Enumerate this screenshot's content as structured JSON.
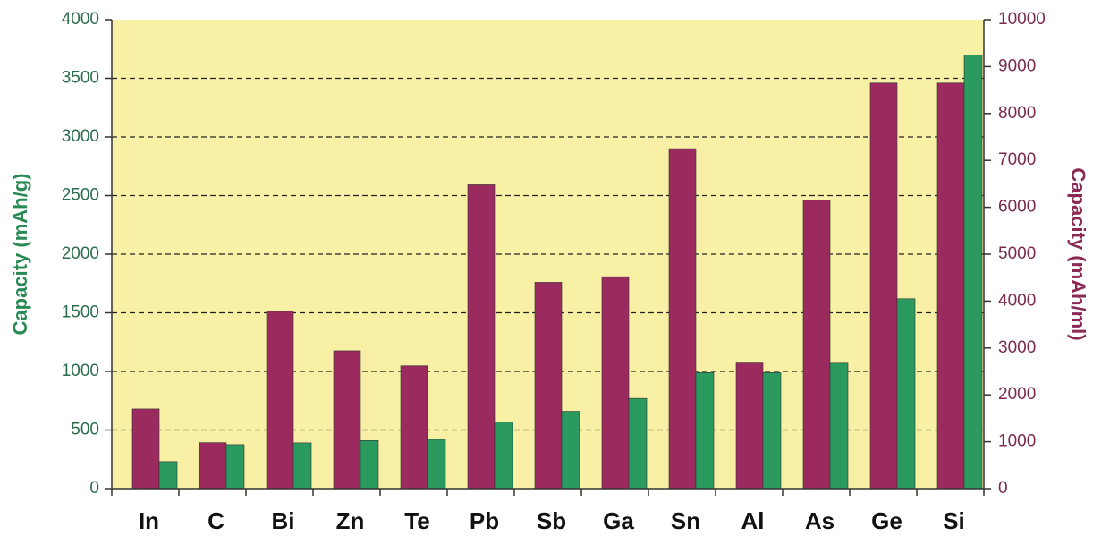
{
  "chart_data": {
    "type": "bar",
    "ylabel": "Capacity (mAh/g)",
    "y2label": "Capacity (mAh/ml)",
    "categories": [
      "In",
      "C",
      "Bi",
      "Zn",
      "Te",
      "Pb",
      "Sb",
      "Ga",
      "Sn",
      "Al",
      "As",
      "Ge",
      "Si"
    ],
    "series": [
      {
        "color": "#9b2a5e",
        "axis": "y2",
        "values": [
          1700,
          980,
          3780,
          2940,
          2620,
          6480,
          4400,
          4520,
          7250,
          2680,
          6150,
          8650,
          8650
        ]
      },
      {
        "color": "#2a9a5e",
        "values": [
          230,
          375,
          390,
          410,
          420,
          570,
          660,
          770,
          990,
          990,
          1070,
          1620,
          3700
        ]
      }
    ],
    "ylim": [
      0,
      4000
    ],
    "yticks": [
      0,
      500,
      1000,
      1500,
      2000,
      2500,
      3000,
      3500,
      4000
    ],
    "y2lim": [
      0,
      10000
    ],
    "y2ticks": [
      0,
      1000,
      2000,
      3000,
      4000,
      5000,
      6000,
      7000,
      8000,
      9000,
      10000
    ],
    "grid": true,
    "background": "#f8f0a4"
  }
}
